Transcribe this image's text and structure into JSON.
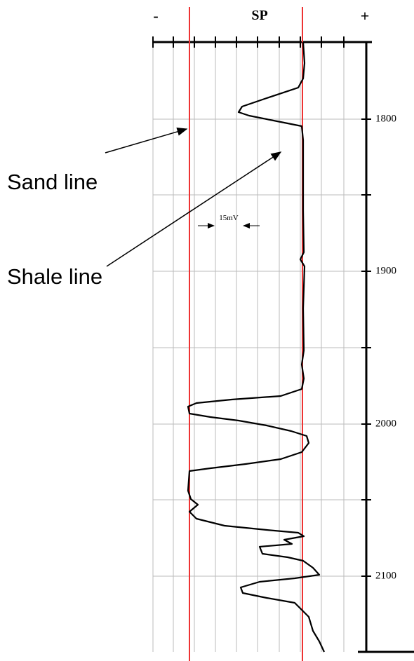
{
  "header": {
    "title": "SP",
    "minus": "-",
    "plus": "+"
  },
  "labels": {
    "sand": "Sand line",
    "shale": "Shale line",
    "scale": "15mV"
  },
  "depths": [
    "1800",
    "1900",
    "2000",
    "2100"
  ]
}
